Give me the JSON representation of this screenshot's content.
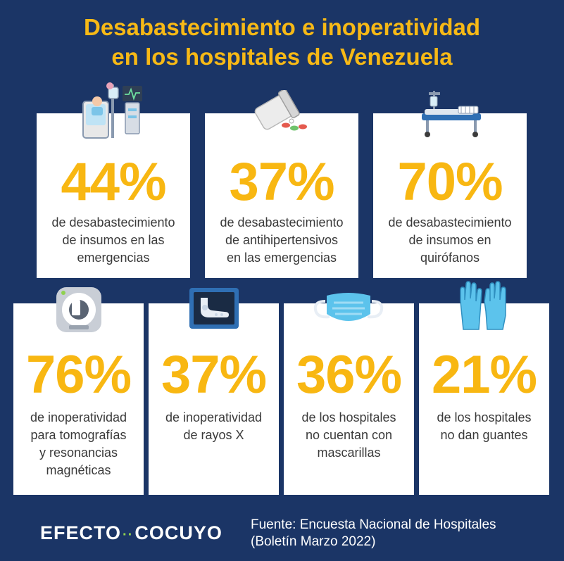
{
  "title": {
    "line1": "Desabastecimiento e inoperatividad",
    "line2": "en los hospitales de Venezuela"
  },
  "colors": {
    "background": "#1b3566",
    "accent": "#f7b916",
    "card": "#ffffff"
  },
  "cards": [
    {
      "percent": "44%",
      "lines": [
        "de desabastecimiento",
        "de insumos en las",
        "emergencias"
      ],
      "icon": "hospital-bed-monitor-icon"
    },
    {
      "percent": "37%",
      "lines": [
        "de desabastecimiento",
        "de antihipertensivos",
        "en las emergencias"
      ],
      "icon": "pill-bottle-icon"
    },
    {
      "percent": "70%",
      "lines": [
        "de desabastecimiento",
        "de insumos en",
        "quirófanos"
      ],
      "icon": "stretcher-icon"
    },
    {
      "percent": "76%",
      "lines": [
        "de inoperatividad",
        "para tomografías",
        "y resonancias",
        "magnéticas"
      ],
      "icon": "mri-scanner-icon"
    },
    {
      "percent": "37%",
      "lines": [
        "de inoperatividad",
        "de rayos X"
      ],
      "icon": "x-ray-foot-icon"
    },
    {
      "percent": "36%",
      "lines": [
        "de los hospitales",
        "no cuentan con",
        "mascarillas"
      ],
      "icon": "face-mask-icon"
    },
    {
      "percent": "21%",
      "lines": [
        "de los hospitales",
        "no dan guantes"
      ],
      "icon": "gloves-icon"
    }
  ],
  "footer": {
    "brand_left": "EFECTO",
    "brand_right": "COCUYO",
    "source_line1": "Fuente: Encuesta Nacional de Hospitales",
    "source_line2": "(Boletín Marzo 2022)"
  }
}
